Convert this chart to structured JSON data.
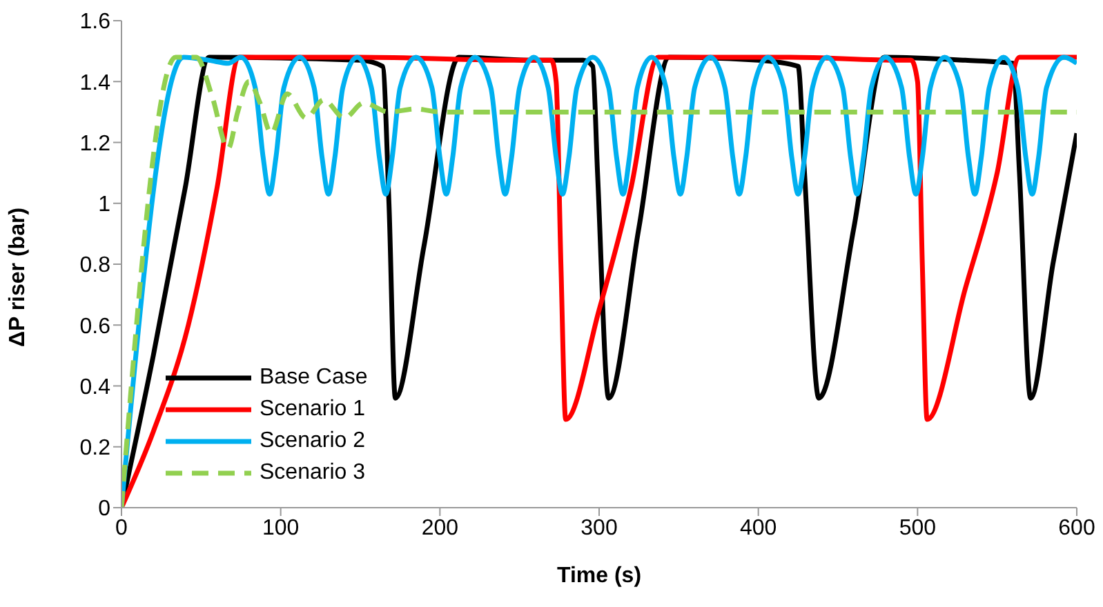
{
  "chart_data": {
    "type": "line",
    "xlabel": "Time (s)",
    "ylabel": "ΔP riser (bar)",
    "xlim": [
      0,
      600
    ],
    "xticks": [
      0,
      100,
      200,
      300,
      400,
      500,
      600
    ],
    "ylim": [
      0,
      1.6
    ],
    "yticks": [
      0,
      0.2,
      0.4,
      0.6,
      0.8,
      1,
      1.2,
      1.4,
      1.6
    ],
    "grid": false,
    "legend": "bottom left",
    "marker": "none",
    "series": [
      {
        "name": "Base Case",
        "color": "#000000",
        "line_style": "solid",
        "x": [
          0,
          20,
          40,
          55,
          150,
          164,
          168,
          172,
          190,
          212,
          260,
          290,
          296,
          299,
          306,
          325,
          344,
          400,
          425,
          429,
          438,
          460,
          479,
          530,
          560,
          564,
          571,
          585,
          600
        ],
        "values": [
          0,
          0.5,
          1.05,
          1.48,
          1.47,
          1.45,
          1.0,
          0.36,
          0.86,
          1.48,
          1.47,
          1.47,
          1.45,
          1.1,
          0.36,
          0.92,
          1.48,
          1.47,
          1.45,
          1.1,
          0.36,
          0.92,
          1.48,
          1.47,
          1.46,
          1.1,
          0.36,
          0.8,
          1.23
        ]
      },
      {
        "name": "Scenario 1",
        "color": "#ff0000",
        "line_style": "solid",
        "x": [
          0,
          20,
          42,
          60,
          74,
          150,
          250,
          270,
          273,
          276,
          279,
          300,
          320,
          337,
          420,
          490,
          496,
          500,
          503,
          506,
          530,
          550,
          564,
          600
        ],
        "values": [
          0,
          0.25,
          0.6,
          1.05,
          1.48,
          1.48,
          1.47,
          1.47,
          1.4,
          0.8,
          0.29,
          0.65,
          1.05,
          1.48,
          1.48,
          1.47,
          1.47,
          1.4,
          0.8,
          0.29,
          0.72,
          1.1,
          1.48,
          1.48
        ]
      },
      {
        "name": "Scenario 2",
        "color": "#00b0f0",
        "line_style": "solid",
        "x": [
          0,
          39,
          55,
          67,
          75,
          84,
          89,
          93,
          97,
          102,
          112,
          121,
          126,
          130,
          134,
          139,
          148,
          157,
          162,
          166,
          170,
          175,
          185,
          195,
          200,
          204,
          208,
          213,
          222,
          232,
          237,
          241,
          245,
          250,
          259,
          268,
          273,
          277,
          281,
          286,
          296,
          306,
          311,
          315,
          319,
          324,
          333,
          342,
          347,
          351,
          355,
          360,
          370,
          379,
          384,
          388,
          392,
          397,
          406,
          416,
          421,
          425,
          429,
          434,
          443,
          453,
          458,
          462,
          466,
          471,
          480,
          490,
          495,
          499,
          503,
          508,
          517,
          527,
          532,
          536,
          540,
          545,
          554,
          563,
          568,
          572,
          576,
          581,
          592,
          600
        ],
        "values": [
          0,
          1.48,
          1.47,
          1.46,
          1.48,
          1.38,
          1.15,
          1.03,
          1.15,
          1.38,
          1.48,
          1.38,
          1.15,
          1.03,
          1.15,
          1.38,
          1.48,
          1.38,
          1.15,
          1.03,
          1.15,
          1.38,
          1.48,
          1.38,
          1.15,
          1.03,
          1.15,
          1.38,
          1.48,
          1.38,
          1.15,
          1.03,
          1.15,
          1.38,
          1.48,
          1.38,
          1.15,
          1.03,
          1.15,
          1.38,
          1.48,
          1.38,
          1.15,
          1.03,
          1.15,
          1.38,
          1.48,
          1.38,
          1.15,
          1.03,
          1.15,
          1.38,
          1.48,
          1.38,
          1.15,
          1.03,
          1.15,
          1.38,
          1.48,
          1.38,
          1.15,
          1.03,
          1.15,
          1.38,
          1.48,
          1.38,
          1.15,
          1.03,
          1.15,
          1.38,
          1.48,
          1.38,
          1.15,
          1.03,
          1.15,
          1.38,
          1.48,
          1.38,
          1.15,
          1.03,
          1.15,
          1.38,
          1.48,
          1.38,
          1.15,
          1.03,
          1.15,
          1.38,
          1.48,
          1.46
        ]
      },
      {
        "name": "Scenario 3",
        "color": "#92d050",
        "line_style": "dashed",
        "x": [
          0,
          34,
          47,
          57,
          67,
          73,
          80,
          87,
          94,
          104,
          116,
          127,
          140,
          152,
          168,
          185,
          200,
          600
        ],
        "values": [
          0,
          1.48,
          1.48,
          1.35,
          1.18,
          1.3,
          1.4,
          1.33,
          1.23,
          1.36,
          1.28,
          1.34,
          1.28,
          1.33,
          1.3,
          1.31,
          1.3,
          1.3
        ]
      }
    ]
  }
}
